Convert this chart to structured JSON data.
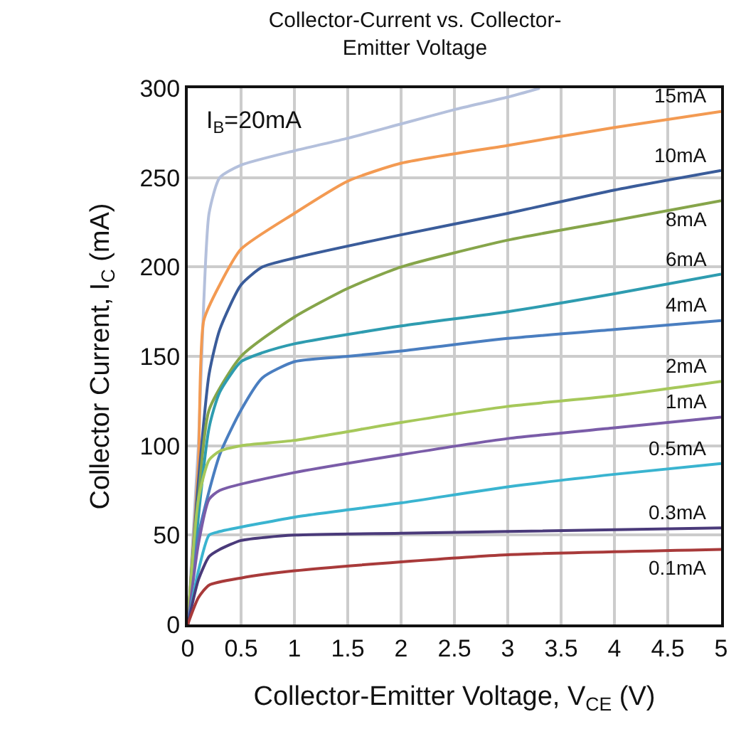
{
  "chart_data": {
    "type": "line",
    "title": "Collector-Current vs. Collector-\nEmitter Voltage",
    "xlabel": "Collector-Emitter Voltage, V$_{CE}$ (V)",
    "ylabel": "Collector Current, I$_{C}$ (mA)",
    "xlim": [
      0,
      5
    ],
    "xticks": [
      0,
      0.5,
      1,
      1.5,
      2,
      2.5,
      3,
      3.5,
      4,
      4.5,
      5
    ],
    "ylim": [
      0,
      300
    ],
    "yticks": [
      0,
      50,
      100,
      150,
      200,
      250,
      300
    ],
    "grid": true,
    "legend": false,
    "marker": "none",
    "line_style": "solid",
    "series": [
      {
        "name": "I$_{B}$=20mA",
        "color": "#b4c0dc",
        "x": [
          0,
          0.1,
          0.15,
          0.2,
          0.3,
          0.5,
          1,
          1.5,
          2,
          2.5,
          3,
          3.3
        ],
        "values": [
          0,
          100,
          180,
          230,
          250,
          257,
          265,
          272,
          280,
          288,
          295,
          300
        ]
      },
      {
        "name": "15mA",
        "color": "#f39a52",
        "x": [
          0,
          0.1,
          0.15,
          0.3,
          0.5,
          1,
          1.5,
          2,
          3,
          4,
          5
        ],
        "values": [
          0,
          90,
          170,
          190,
          210,
          230,
          248,
          258,
          268,
          278,
          287
        ]
      },
      {
        "name": "10mA",
        "color": "#3a5c9a",
        "x": [
          0,
          0.1,
          0.2,
          0.3,
          0.5,
          0.7,
          1,
          2,
          3,
          4,
          5
        ],
        "values": [
          0,
          80,
          140,
          165,
          190,
          200,
          205,
          218,
          230,
          243,
          254
        ]
      },
      {
        "name": "8mA",
        "color": "#86a54a",
        "x": [
          0,
          0.1,
          0.2,
          0.5,
          1,
          1.5,
          2,
          3,
          4,
          5
        ],
        "values": [
          0,
          70,
          120,
          150,
          172,
          188,
          200,
          215,
          226,
          237
        ]
      },
      {
        "name": "6mA",
        "color": "#2e9cb0",
        "x": [
          0,
          0.2,
          0.3,
          0.5,
          0.7,
          1,
          2,
          3,
          4,
          5
        ],
        "values": [
          0,
          110,
          130,
          147,
          152,
          157,
          167,
          175,
          185,
          196
        ]
      },
      {
        "name": "4mA",
        "color": "#4a7ec0",
        "x": [
          0,
          0.1,
          0.3,
          0.5,
          0.7,
          1,
          1.5,
          2,
          3,
          4,
          5
        ],
        "values": [
          0,
          50,
          95,
          120,
          138,
          147,
          150,
          153,
          160,
          165,
          170
        ]
      },
      {
        "name": "2mA",
        "color": "#a6c85a",
        "x": [
          0,
          0.1,
          0.2,
          0.3,
          0.5,
          1,
          2,
          3,
          4,
          5
        ],
        "values": [
          0,
          70,
          92,
          97,
          100,
          103,
          113,
          122,
          128,
          136
        ]
      },
      {
        "name": "1mA",
        "color": "#7a5ca8",
        "x": [
          0,
          0.1,
          0.2,
          0.3,
          1,
          2,
          3,
          4,
          5
        ],
        "values": [
          0,
          45,
          70,
          75,
          85,
          95,
          104,
          110,
          116
        ]
      },
      {
        "name": "0.5mA",
        "color": "#3ab4d0",
        "x": [
          0,
          0.1,
          0.2,
          0.3,
          1,
          2,
          3,
          4,
          5
        ],
        "values": [
          0,
          30,
          50,
          52,
          60,
          68,
          77,
          84,
          90
        ]
      },
      {
        "name": "0.3mA",
        "color": "#4a3a7a",
        "x": [
          0,
          0.1,
          0.2,
          0.3,
          0.5,
          1,
          2,
          3,
          5
        ],
        "values": [
          0,
          25,
          38,
          42,
          47,
          50,
          51,
          52,
          54
        ]
      },
      {
        "name": "0.1mA",
        "color": "#a83a3a",
        "x": [
          0,
          0.1,
          0.2,
          0.5,
          1,
          2,
          3,
          5
        ],
        "values": [
          0,
          15,
          22,
          26,
          30,
          35,
          39,
          42
        ]
      }
    ]
  }
}
